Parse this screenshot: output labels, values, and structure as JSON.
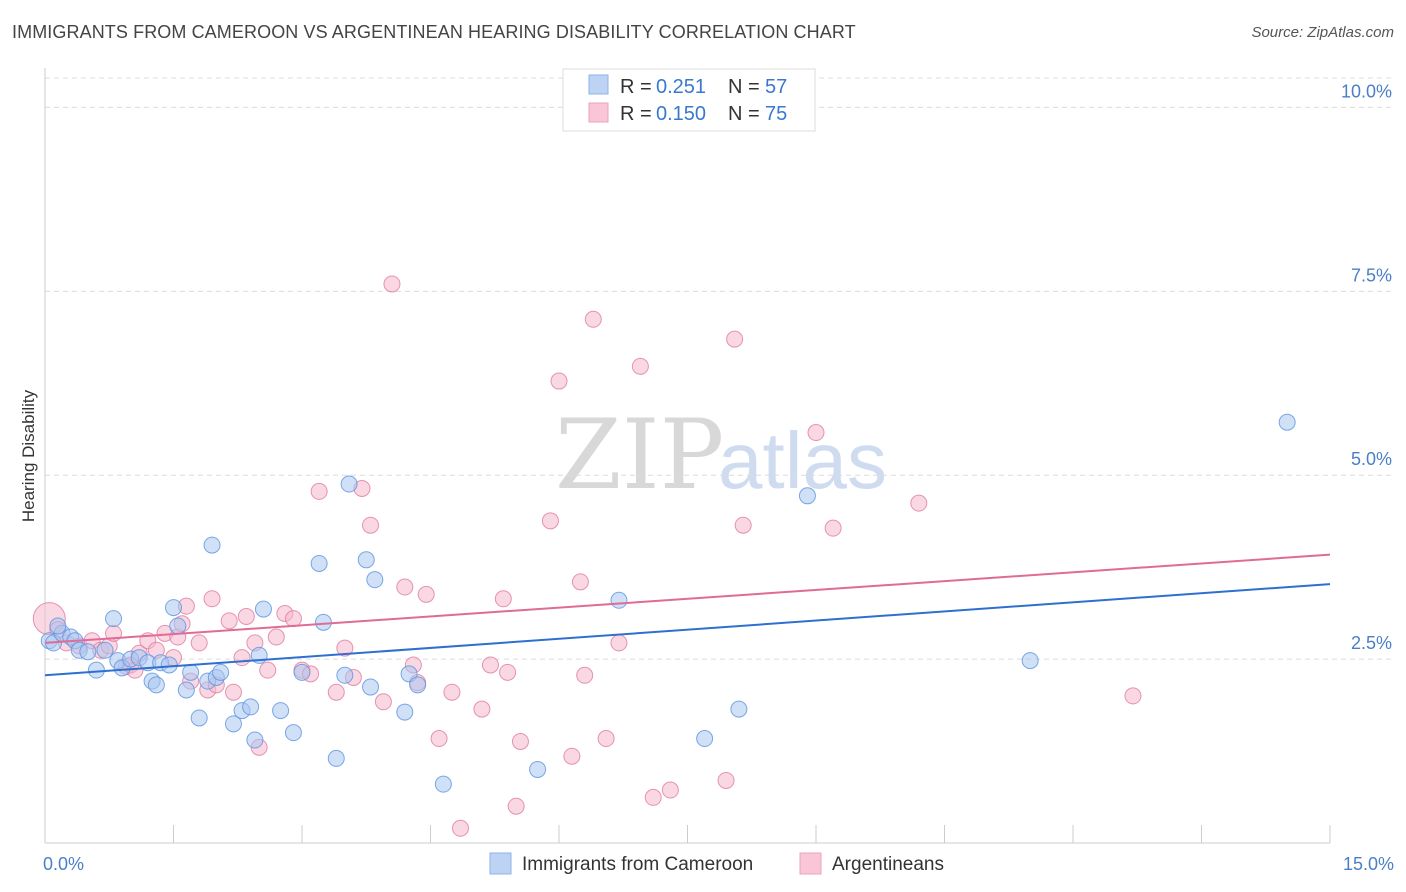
{
  "chart_data": {
    "type": "scatter",
    "title": "IMMIGRANTS FROM CAMEROON VS ARGENTINEAN HEARING DISABILITY CORRELATION CHART",
    "source": "Source: ZipAtlas.com",
    "ylabel": "Hearing Disability",
    "xlim": [
      0,
      15
    ],
    "ylim": [
      0,
      10.4
    ],
    "x_tick_labels": [
      {
        "value": 0,
        "label": "0.0%"
      },
      {
        "value": 15,
        "label": "15.0%"
      }
    ],
    "y_tick_labels": [
      {
        "value": 2.5,
        "label": "2.5%"
      },
      {
        "value": 5.0,
        "label": "5.0%"
      },
      {
        "value": 7.5,
        "label": "7.5%"
      },
      {
        "value": 10.0,
        "label": "10.0%"
      }
    ],
    "legend": {
      "placement": "top-center",
      "entries": [
        {
          "r_label": "R =",
          "r_value": "0.251",
          "n_label": "N =",
          "n_value": "57"
        },
        {
          "r_label": "R =",
          "r_value": "0.150",
          "n_label": "N =",
          "n_value": "75"
        }
      ]
    },
    "watermark": {
      "zip": "ZIP",
      "atlas": "atlas"
    },
    "series": [
      {
        "name": "Immigrants from Cameroon",
        "color": "#5b93e0",
        "fill": "#a9c7f0",
        "trend": [
          [
            0,
            2.28
          ],
          [
            15,
            3.52
          ]
        ],
        "points": [
          [
            0.05,
            2.75
          ],
          [
            0.1,
            2.72
          ],
          [
            0.2,
            2.85
          ],
          [
            0.3,
            2.8
          ],
          [
            0.35,
            2.75
          ],
          [
            0.4,
            2.62
          ],
          [
            0.5,
            2.6
          ],
          [
            0.6,
            2.35
          ],
          [
            0.7,
            2.62
          ],
          [
            0.8,
            3.05
          ],
          [
            0.85,
            2.48
          ],
          [
            0.9,
            2.38
          ],
          [
            1.0,
            2.5
          ],
          [
            1.1,
            2.52
          ],
          [
            1.2,
            2.45
          ],
          [
            1.25,
            2.2
          ],
          [
            1.3,
            2.15
          ],
          [
            1.35,
            2.45
          ],
          [
            1.45,
            2.42
          ],
          [
            1.5,
            3.2
          ],
          [
            1.55,
            2.95
          ],
          [
            1.65,
            2.08
          ],
          [
            1.7,
            2.32
          ],
          [
            1.8,
            1.7
          ],
          [
            1.9,
            2.2
          ],
          [
            1.95,
            4.05
          ],
          [
            2.0,
            2.25
          ],
          [
            2.05,
            2.32
          ],
          [
            2.2,
            1.62
          ],
          [
            2.3,
            1.8
          ],
          [
            2.4,
            1.85
          ],
          [
            2.45,
            1.4
          ],
          [
            2.5,
            2.55
          ],
          [
            2.55,
            3.18
          ],
          [
            2.75,
            1.8
          ],
          [
            2.9,
            1.5
          ],
          [
            3.0,
            2.32
          ],
          [
            3.2,
            3.8
          ],
          [
            3.25,
            3.0
          ],
          [
            3.4,
            1.15
          ],
          [
            3.5,
            2.28
          ],
          [
            3.55,
            4.88
          ],
          [
            3.75,
            3.85
          ],
          [
            3.8,
            2.12
          ],
          [
            3.85,
            3.58
          ],
          [
            4.2,
            1.78
          ],
          [
            4.25,
            2.3
          ],
          [
            4.35,
            2.15
          ],
          [
            4.65,
            0.8
          ],
          [
            5.75,
            1.0
          ],
          [
            6.7,
            3.3
          ],
          [
            7.7,
            1.42
          ],
          [
            8.1,
            1.82
          ],
          [
            8.9,
            4.72
          ],
          [
            11.5,
            2.48
          ],
          [
            14.5,
            5.72
          ],
          [
            0.15,
            2.95
          ]
        ]
      },
      {
        "name": "Argentineans",
        "color": "#e07aa0",
        "fill": "#f5b8cc",
        "trend": [
          [
            0,
            2.72
          ],
          [
            15,
            3.92
          ]
        ],
        "points": [
          [
            0.05,
            3.05
          ],
          [
            0.15,
            2.9
          ],
          [
            0.25,
            2.72
          ],
          [
            0.4,
            2.68
          ],
          [
            0.55,
            2.75
          ],
          [
            0.65,
            2.62
          ],
          [
            0.75,
            2.68
          ],
          [
            0.8,
            2.85
          ],
          [
            0.95,
            2.4
          ],
          [
            1.0,
            2.42
          ],
          [
            1.05,
            2.35
          ],
          [
            1.1,
            2.58
          ],
          [
            1.2,
            2.75
          ],
          [
            1.3,
            2.62
          ],
          [
            1.4,
            2.85
          ],
          [
            1.5,
            2.52
          ],
          [
            1.55,
            2.8
          ],
          [
            1.6,
            2.98
          ],
          [
            1.65,
            3.22
          ],
          [
            1.7,
            2.2
          ],
          [
            1.8,
            2.72
          ],
          [
            1.9,
            2.08
          ],
          [
            1.95,
            3.32
          ],
          [
            2.0,
            2.15
          ],
          [
            2.15,
            3.02
          ],
          [
            2.2,
            2.05
          ],
          [
            2.3,
            2.52
          ],
          [
            2.35,
            3.08
          ],
          [
            2.45,
            2.72
          ],
          [
            2.5,
            1.3
          ],
          [
            2.6,
            2.35
          ],
          [
            2.7,
            2.8
          ],
          [
            2.8,
            3.12
          ],
          [
            2.9,
            3.05
          ],
          [
            3.0,
            2.35
          ],
          [
            3.1,
            2.3
          ],
          [
            3.2,
            4.78
          ],
          [
            3.4,
            2.05
          ],
          [
            3.5,
            2.65
          ],
          [
            3.6,
            2.25
          ],
          [
            3.7,
            4.82
          ],
          [
            3.8,
            4.32
          ],
          [
            3.95,
            1.92
          ],
          [
            4.05,
            7.6
          ],
          [
            4.2,
            3.48
          ],
          [
            4.3,
            2.42
          ],
          [
            4.35,
            2.18
          ],
          [
            4.45,
            3.38
          ],
          [
            4.6,
            1.42
          ],
          [
            4.75,
            2.05
          ],
          [
            4.85,
            0.2
          ],
          [
            5.1,
            1.82
          ],
          [
            5.2,
            2.42
          ],
          [
            5.35,
            3.32
          ],
          [
            5.4,
            2.32
          ],
          [
            5.5,
            0.5
          ],
          [
            5.55,
            1.38
          ],
          [
            5.9,
            4.38
          ],
          [
            6.0,
            6.28
          ],
          [
            6.15,
            1.18
          ],
          [
            6.25,
            3.55
          ],
          [
            6.3,
            2.28
          ],
          [
            6.4,
            7.12
          ],
          [
            6.55,
            1.42
          ],
          [
            6.7,
            2.72
          ],
          [
            6.95,
            6.48
          ],
          [
            7.1,
            0.62
          ],
          [
            7.3,
            0.72
          ],
          [
            7.95,
            0.85
          ],
          [
            8.05,
            6.85
          ],
          [
            8.15,
            4.32
          ],
          [
            9.0,
            5.58
          ],
          [
            9.2,
            4.28
          ],
          [
            10.2,
            4.62
          ],
          [
            12.7,
            2.0
          ]
        ]
      }
    ]
  }
}
